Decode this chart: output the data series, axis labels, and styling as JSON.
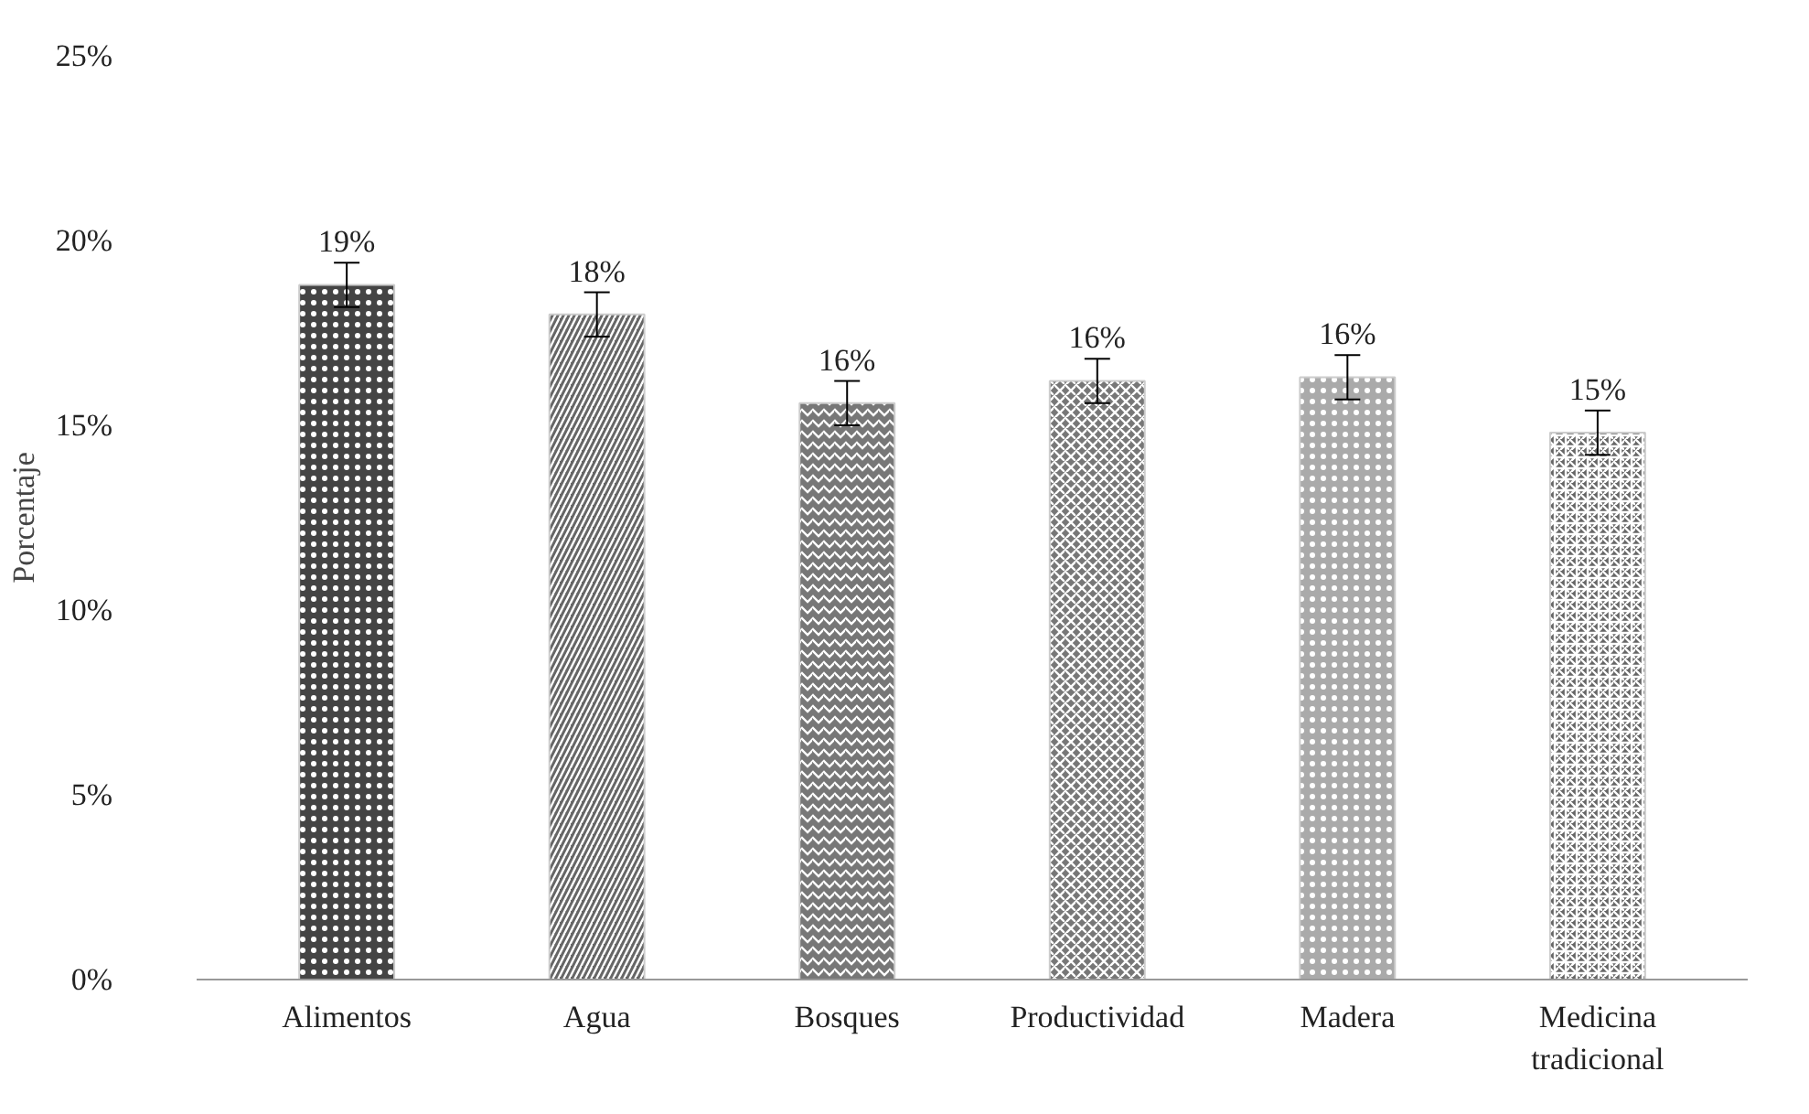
{
  "chart_data": {
    "type": "bar",
    "ylabel": "Porcentaje",
    "categories": [
      "Alimentos",
      "Agua",
      "Bosques",
      "Productividad",
      "Madera",
      "Medicina tradicional"
    ],
    "values": [
      18.8,
      18.0,
      15.6,
      16.2,
      16.3,
      14.8
    ],
    "errors": [
      0.6,
      0.6,
      0.6,
      0.6,
      0.6,
      0.6
    ],
    "value_labels": [
      "19%",
      "18%",
      "16%",
      "16%",
      "16%",
      "15%"
    ],
    "colors": [
      "#444444",
      "#666666",
      "#777777",
      "#777777",
      "#aaaaaa",
      "#666666"
    ],
    "ylim": [
      0,
      25
    ],
    "yticks": [
      {
        "value": 0,
        "label": "0%"
      },
      {
        "value": 5,
        "label": "5%"
      },
      {
        "value": 10,
        "label": "10%"
      },
      {
        "value": 15,
        "label": "15%"
      },
      {
        "value": 20,
        "label": "20%"
      },
      {
        "value": 25,
        "label": "25%"
      }
    ],
    "grid": false
  }
}
